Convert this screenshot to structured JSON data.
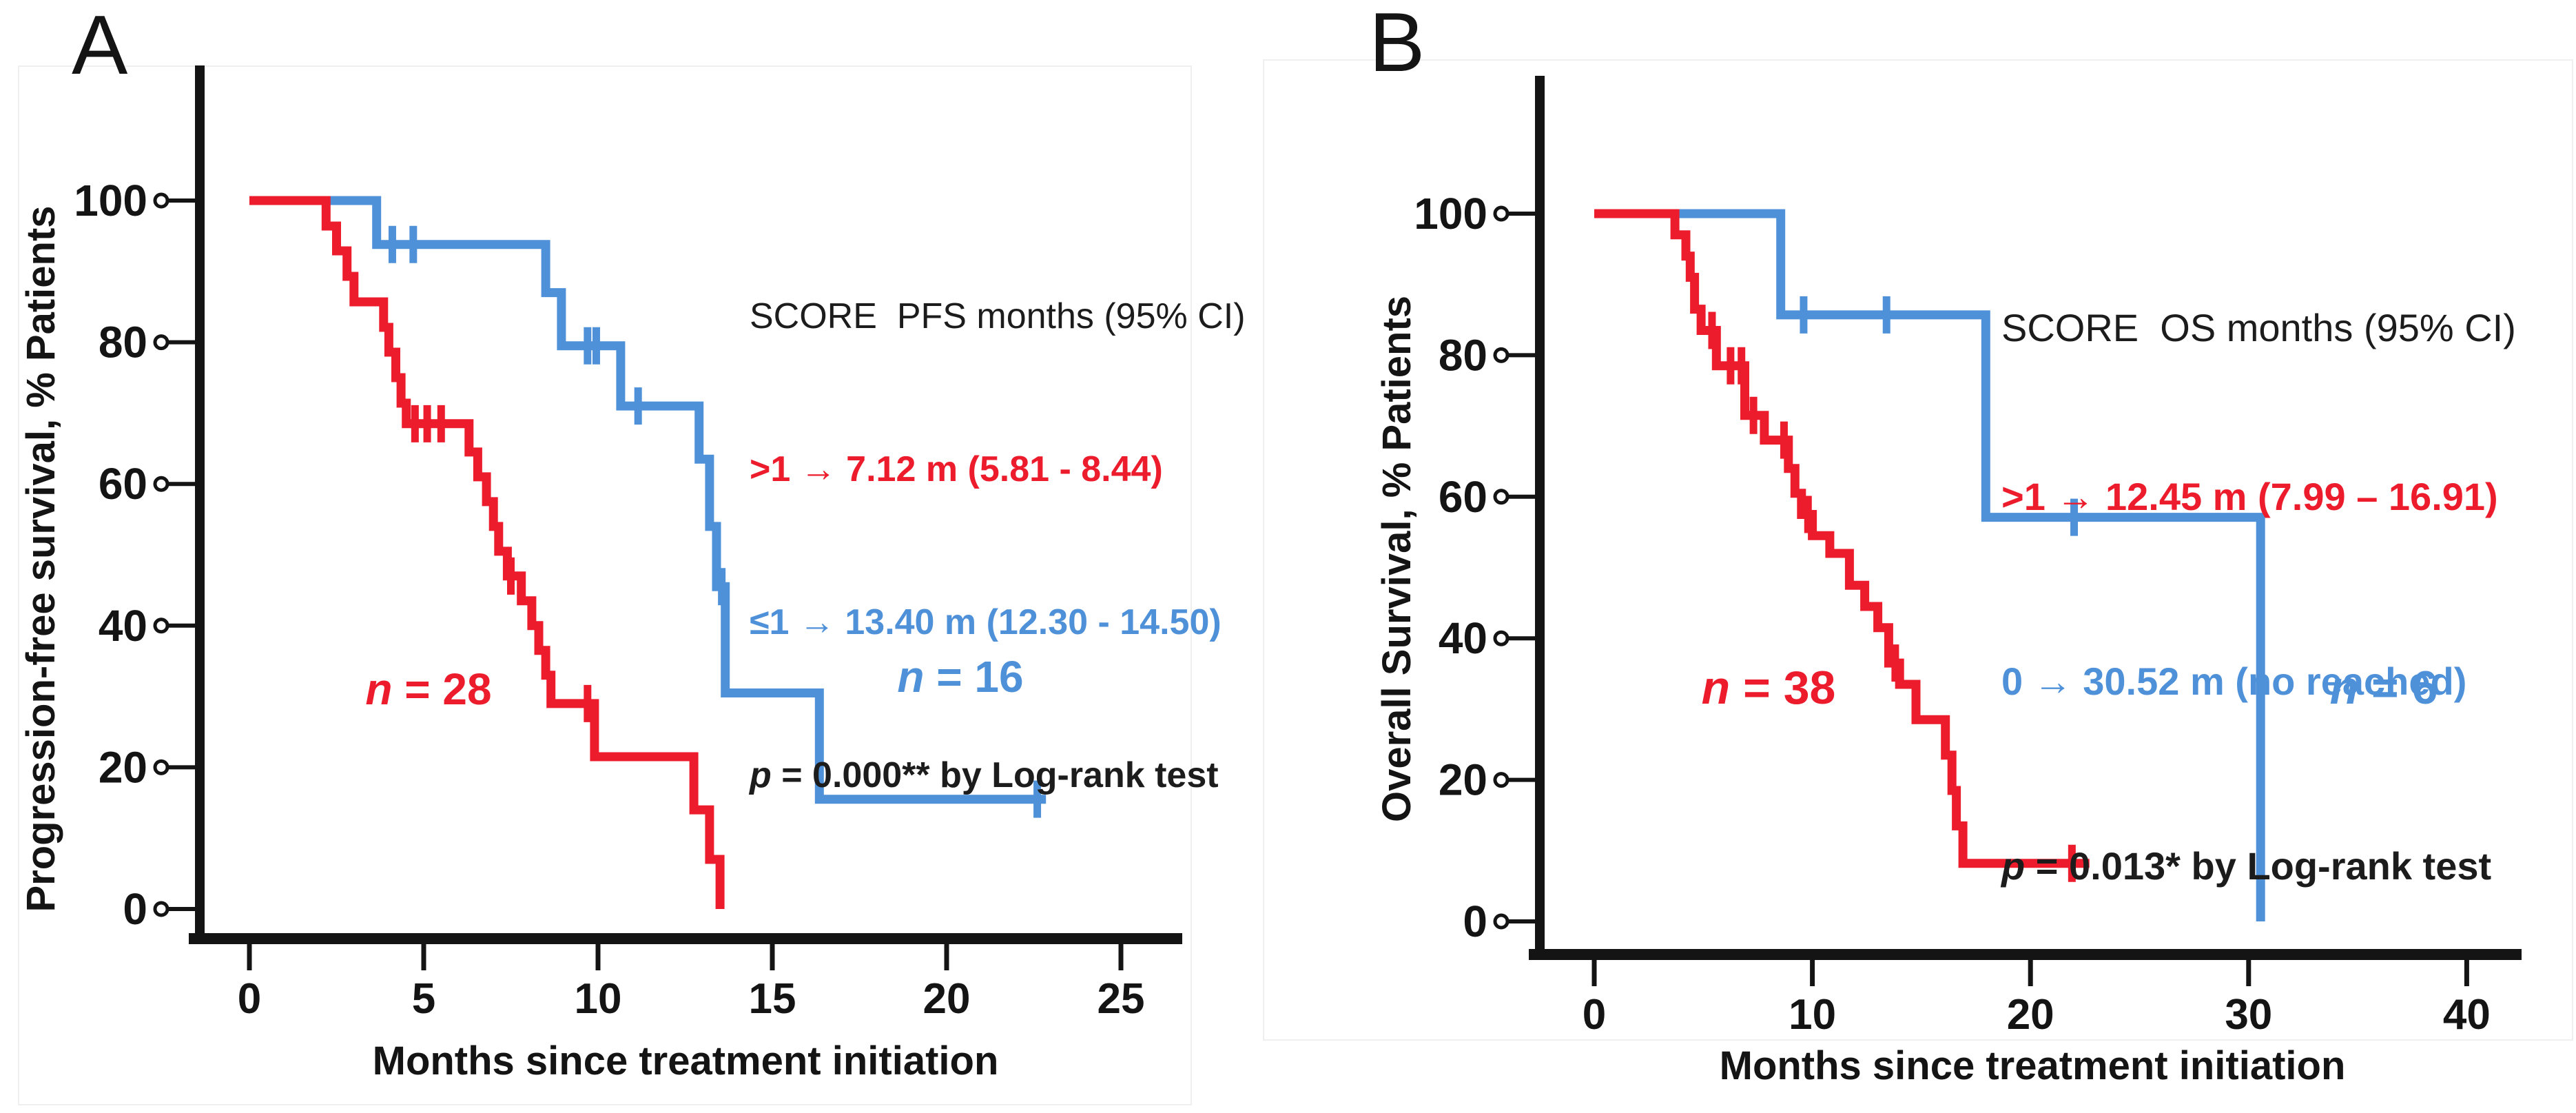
{
  "figure_colors": {
    "high_score_red": "#ec1c2c",
    "low_score_blue": "#4f91d9",
    "axis_black": "#141414"
  },
  "chart_data": [
    {
      "type": "line",
      "subtype": "kaplan-meier-step",
      "panel_label": "A",
      "xlabel": "Months since treatment initiation",
      "ylabel": "Progression-free survival, % Patients",
      "x_ticks": [
        0,
        5,
        10,
        15,
        20,
        25
      ],
      "y_ticks": [
        0,
        20,
        40,
        60,
        80,
        100
      ],
      "xlim": [
        -1.4,
        26.8
      ],
      "ylim": [
        0,
        100
      ],
      "grid": false,
      "legend": {
        "position": "top-right",
        "header": "SCORE  PFS months (95% CI)",
        "entries": [
          {
            "text": ">1 → 7.12 m (5.81 - 8.44)",
            "color": "#ec1c2c"
          },
          {
            "text": "≤1 → 13.40 m (12.30 - 14.50)",
            "color": "#4f91d9"
          }
        ],
        "p_italic": "p",
        "p_text": " = 0.000** by Log-rank test",
        "p_color": "#1c1c1c"
      },
      "series": [
        {
          "name": "SCORE >1",
          "n": 28,
          "n_prefix": "n",
          "n_text": " = 28",
          "n_label_pos": [
            5.15,
            31
          ],
          "median_months": 7.12,
          "ci_95": "5.81 - 8.44",
          "color": "#ec1c2c",
          "steps": [
            [
              0,
              100
            ],
            [
              2.2,
              100
            ],
            [
              2.2,
              96.4
            ],
            [
              2.5,
              96.4
            ],
            [
              2.5,
              92.9
            ],
            [
              2.8,
              92.9
            ],
            [
              2.8,
              89.3
            ],
            [
              3.0,
              89.3
            ],
            [
              3.0,
              85.7
            ],
            [
              3.85,
              85.7
            ],
            [
              3.85,
              82.1
            ],
            [
              4.0,
              82.1
            ],
            [
              4.0,
              78.6
            ],
            [
              4.2,
              78.6
            ],
            [
              4.2,
              75
            ],
            [
              4.35,
              75
            ],
            [
              4.35,
              71.4
            ],
            [
              4.5,
              71.4
            ],
            [
              4.5,
              68.5
            ],
            [
              6.3,
              68.5
            ],
            [
              6.3,
              64.5
            ],
            [
              6.55,
              64.5
            ],
            [
              6.55,
              61
            ],
            [
              6.8,
              61
            ],
            [
              6.8,
              57.5
            ],
            [
              7.0,
              57.5
            ],
            [
              7.0,
              54
            ],
            [
              7.15,
              54
            ],
            [
              7.15,
              50.5
            ],
            [
              7.4,
              50.5
            ],
            [
              7.4,
              47
            ],
            [
              7.8,
              47
            ],
            [
              7.8,
              43.5
            ],
            [
              8.1,
              43.5
            ],
            [
              8.1,
              40
            ],
            [
              8.3,
              40
            ],
            [
              8.3,
              36.5
            ],
            [
              8.5,
              36.5
            ],
            [
              8.5,
              33
            ],
            [
              8.65,
              33
            ],
            [
              8.65,
              29
            ],
            [
              9.9,
              29
            ],
            [
              9.9,
              21.5
            ],
            [
              12.75,
              21.5
            ],
            [
              12.75,
              14
            ],
            [
              13.2,
              14
            ],
            [
              13.2,
              7
            ],
            [
              13.5,
              7
            ],
            [
              13.5,
              0
            ]
          ],
          "censors": [
            [
              4.75,
              68.5
            ],
            [
              5.1,
              68.5
            ],
            [
              5.5,
              68.5
            ],
            [
              7.5,
              47
            ],
            [
              9.7,
              29
            ]
          ]
        },
        {
          "name": "SCORE ≤1",
          "n": 16,
          "n_prefix": "n",
          "n_text": " = 16",
          "n_label_pos": [
            20.4,
            33
          ],
          "median_months": 13.4,
          "ci_95": "12.30 - 14.50",
          "color": "#4f91d9",
          "steps": [
            [
              2.2,
              100
            ],
            [
              3.65,
              100
            ],
            [
              3.65,
              93.8
            ],
            [
              8.5,
              93.8
            ],
            [
              8.5,
              87
            ],
            [
              8.95,
              87
            ],
            [
              8.95,
              79.5
            ],
            [
              10.65,
              79.5
            ],
            [
              10.65,
              71
            ],
            [
              12.9,
              71
            ],
            [
              12.9,
              63.5
            ],
            [
              13.2,
              63.5
            ],
            [
              13.2,
              54
            ],
            [
              13.4,
              54
            ],
            [
              13.4,
              45.5
            ],
            [
              13.65,
              45.5
            ],
            [
              13.65,
              30.5
            ],
            [
              16.35,
              30.5
            ],
            [
              16.35,
              15.5
            ],
            [
              22.85,
              15.5
            ]
          ],
          "censors": [
            [
              4.1,
              93.8
            ],
            [
              4.7,
              93.8
            ],
            [
              9.7,
              79.5
            ],
            [
              9.95,
              79.5
            ],
            [
              11.15,
              71
            ],
            [
              13.55,
              45.5
            ],
            [
              22.6,
              15.5
            ]
          ]
        }
      ]
    },
    {
      "type": "line",
      "subtype": "kaplan-meier-step",
      "panel_label": "B",
      "xlabel": "Months since treatment initiation",
      "ylabel": "Overall Survival, % Patients",
      "x_ticks": [
        0,
        10,
        20,
        30,
        40
      ],
      "y_ticks": [
        0,
        20,
        40,
        60,
        80,
        100
      ],
      "xlim": [
        -2.5,
        42.5
      ],
      "ylim": [
        0,
        100
      ],
      "grid": false,
      "legend": {
        "position": "top-right",
        "header": "SCORE  OS months (95% CI)",
        "entries": [
          {
            "text": ">1 → 12.45 m (7.99 – 16.91)",
            "color": "#ec1c2c"
          },
          {
            "text": "0 → 30.52 m (no reached)",
            "color": "#4f91d9"
          }
        ],
        "p_italic": "p",
        "p_text": " = 0.013* by Log-rank test",
        "p_color": "#1c1c1c"
      },
      "series": [
        {
          "name": "SCORE >1",
          "n": 38,
          "n_prefix": "n",
          "n_text": " = 38",
          "n_label_pos": [
            8.0,
            33
          ],
          "median_months": 12.45,
          "ci_95": "7.99 – 16.91",
          "color": "#ec1c2c",
          "steps": [
            [
              0,
              100
            ],
            [
              3.7,
              100
            ],
            [
              3.7,
              97
            ],
            [
              4.2,
              97
            ],
            [
              4.2,
              94
            ],
            [
              4.4,
              94
            ],
            [
              4.4,
              91
            ],
            [
              4.6,
              91
            ],
            [
              4.6,
              86.5
            ],
            [
              4.9,
              86.5
            ],
            [
              4.9,
              83.5
            ],
            [
              5.6,
              83.5
            ],
            [
              5.6,
              78.5
            ],
            [
              6.9,
              78.5
            ],
            [
              6.9,
              71.5
            ],
            [
              7.8,
              71.5
            ],
            [
              7.8,
              68
            ],
            [
              8.9,
              68
            ],
            [
              8.9,
              64
            ],
            [
              9.2,
              64
            ],
            [
              9.2,
              60.5
            ],
            [
              9.5,
              60.5
            ],
            [
              9.5,
              57.5
            ],
            [
              10.0,
              57.5
            ],
            [
              10.0,
              54.5
            ],
            [
              10.8,
              54.5
            ],
            [
              10.8,
              52
            ],
            [
              11.7,
              52
            ],
            [
              11.7,
              47.5
            ],
            [
              12.4,
              47.5
            ],
            [
              12.4,
              44.5
            ],
            [
              13.0,
              44.5
            ],
            [
              13.0,
              41.5
            ],
            [
              13.5,
              41.5
            ],
            [
              13.5,
              36.5
            ],
            [
              14.0,
              36.5
            ],
            [
              14.0,
              33.5
            ],
            [
              14.75,
              33.5
            ],
            [
              14.75,
              28.5
            ],
            [
              16.1,
              28.5
            ],
            [
              16.1,
              23.5
            ],
            [
              16.4,
              23.5
            ],
            [
              16.4,
              18.5
            ],
            [
              16.6,
              18.5
            ],
            [
              16.6,
              13.5
            ],
            [
              16.9,
              13.5
            ],
            [
              16.9,
              8.2
            ],
            [
              22.7,
              8.2
            ]
          ],
          "censors": [
            [
              5.4,
              83.5
            ],
            [
              6.25,
              78.5
            ],
            [
              6.75,
              78.5
            ],
            [
              7.3,
              71.5
            ],
            [
              8.7,
              68
            ],
            [
              9.8,
              57.5
            ],
            [
              13.8,
              36.5
            ],
            [
              21.9,
              8.2
            ]
          ]
        },
        {
          "name": "SCORE 0",
          "n": 6,
          "n_prefix": "n",
          "n_text": " = 6",
          "n_label_pos": [
            36.2,
            33
          ],
          "median_months": 30.52,
          "ci_95": "no reached",
          "color": "#4f91d9",
          "steps": [
            [
              3.8,
              100
            ],
            [
              8.55,
              100
            ],
            [
              8.55,
              85.7
            ],
            [
              17.95,
              85.7
            ],
            [
              17.95,
              57.1
            ],
            [
              30.55,
              57.1
            ],
            [
              30.55,
              0
            ]
          ],
          "censors": [
            [
              9.6,
              85.7
            ],
            [
              13.4,
              85.7
            ],
            [
              22.0,
              57.1
            ]
          ]
        }
      ]
    }
  ]
}
